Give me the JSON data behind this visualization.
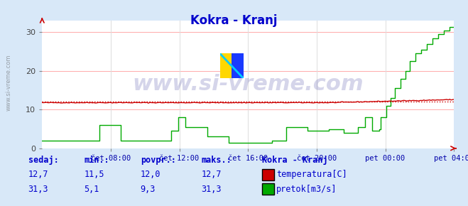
{
  "title": "Kokra - Kranj",
  "title_color": "#0000cc",
  "bg_color": "#d8e8f8",
  "plot_bg_color": "#ffffff",
  "grid_color_h": "#ffaaaa",
  "grid_color_v": "#dddddd",
  "ylim": [
    0,
    33
  ],
  "yticks": [
    0,
    10,
    20,
    30
  ],
  "xlabel_color": "#0000aa",
  "x_labels": [
    "čet 08:00",
    "čet 12:00",
    "čet 16:00",
    "čet 20:00",
    "pet 00:00",
    "pet 04:00"
  ],
  "watermark": "www.si-vreme.com",
  "watermark_color": "#1a1a8c",
  "watermark_alpha": 0.18,
  "temp_color": "#cc0000",
  "flow_color": "#00aa00",
  "avg_line_color": "#cc0000",
  "avg_line_style": "dotted",
  "avg_temp": 12.0,
  "legend_station": "Kokra - Kranj",
  "legend_color": "#0000cc",
  "table_headers": [
    "sedaj:",
    "min.:",
    "povpr.:",
    "maks.:"
  ],
  "table_temp": [
    "12,7",
    "11,5",
    "12,0",
    "12,7"
  ],
  "table_flow": [
    "31,3",
    "5,1",
    "9,3",
    "31,3"
  ],
  "label_temp": "temperatura[C]",
  "label_flow": "pretok[m3/s]",
  "n_points": 288
}
